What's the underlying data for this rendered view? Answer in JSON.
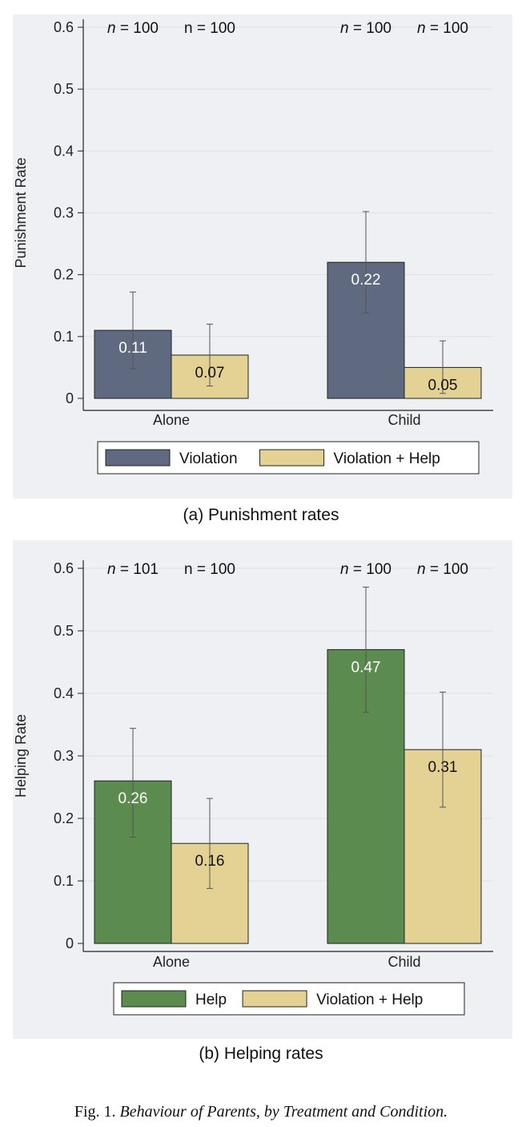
{
  "colors": {
    "violation": "#5f6a80",
    "violation_help": "#e4d294",
    "help": "#5b8b4e",
    "panel_bg": "#eef0f3"
  },
  "chart_data": [
    {
      "type": "bar",
      "panel": "a",
      "subtitle": "(a) Punishment rates",
      "ylabel": "Punishment Rate",
      "xlabel": "",
      "ylim": [
        0,
        0.6
      ],
      "yticks": [
        "0",
        "0.1",
        "0.2",
        "0.3",
        "0.4",
        "0.5",
        "0.6"
      ],
      "yticks_values": [
        0,
        0.1,
        0.2,
        0.3,
        0.4,
        0.5,
        0.6
      ],
      "grid": true,
      "legend_position": "bottom",
      "categories": [
        "Alone",
        "Child"
      ],
      "series": [
        {
          "name": "Violation",
          "color": "#5f6a80",
          "label_color": "#ffffff",
          "values": [
            0.11,
            0.22
          ],
          "labels": [
            "0.11",
            "0.22"
          ],
          "ci_low": [
            0.048,
            0.138
          ],
          "ci_high": [
            0.172,
            0.302
          ],
          "n": [
            "100",
            "100"
          ],
          "n_italic": [
            true,
            true
          ]
        },
        {
          "name": "Violation + Help",
          "color": "#e4d294",
          "label_color": "#111111",
          "values": [
            0.07,
            0.05
          ],
          "labels": [
            "0.07",
            "0.05"
          ],
          "ci_low": [
            0.02,
            0.008
          ],
          "ci_high": [
            0.12,
            0.093
          ],
          "n": [
            "100",
            "100"
          ],
          "n_italic": [
            false,
            true
          ]
        }
      ]
    },
    {
      "type": "bar",
      "panel": "b",
      "subtitle": "(b) Helping rates",
      "ylabel": "Helping Rate",
      "xlabel": "",
      "ylim": [
        0,
        0.6
      ],
      "yticks": [
        "0",
        "0.1",
        "0.2",
        "0.3",
        "0.4",
        "0.5",
        "0.6"
      ],
      "yticks_values": [
        0,
        0.1,
        0.2,
        0.3,
        0.4,
        0.5,
        0.6
      ],
      "grid": true,
      "legend_position": "bottom",
      "categories": [
        "Alone",
        "Child"
      ],
      "series": [
        {
          "name": "Help",
          "color": "#5b8b4e",
          "label_color": "#ffffff",
          "values": [
            0.26,
            0.47
          ],
          "labels": [
            "0.26",
            "0.47"
          ],
          "ci_low": [
            0.17,
            0.37
          ],
          "ci_high": [
            0.344,
            0.57
          ],
          "n": [
            "101",
            "100"
          ],
          "n_italic": [
            true,
            true
          ]
        },
        {
          "name": "Violation + Help",
          "color": "#e4d294",
          "label_color": "#111111",
          "values": [
            0.16,
            0.31
          ],
          "labels": [
            "0.16",
            "0.31"
          ],
          "ci_low": [
            0.088,
            0.218
          ],
          "ci_high": [
            0.232,
            0.402
          ],
          "n": [
            "100",
            "100"
          ],
          "n_italic": [
            false,
            true
          ]
        }
      ]
    }
  ],
  "figure_caption": {
    "prefix": "Fig. 1.",
    "text": "Behaviour of Parents, by Treatment and Condition."
  }
}
